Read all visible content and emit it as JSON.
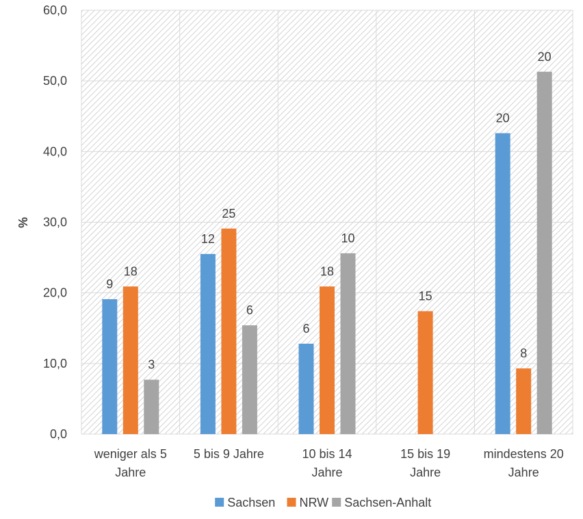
{
  "chart_data": {
    "type": "bar",
    "title": "",
    "xlabel": "",
    "ylabel": "%",
    "ylim": [
      0,
      60
    ],
    "yticks": [
      0,
      10,
      20,
      30,
      40,
      50,
      60
    ],
    "ytick_labels": [
      "0,0",
      "10,0",
      "20,0",
      "30,0",
      "40,0",
      "50,0",
      "60,0"
    ],
    "categories": [
      [
        "weniger als 5",
        "Jahre"
      ],
      [
        "5 bis 9 Jahre"
      ],
      [
        "10 bis 14",
        "Jahre"
      ],
      [
        "15 bis 19",
        "Jahre"
      ],
      [
        "mindestens 20",
        "Jahre"
      ]
    ],
    "series": [
      {
        "name": "Sachsen",
        "color": "#5B9BD5",
        "values": [
          19.1,
          25.5,
          12.8,
          null,
          42.6
        ],
        "labels": [
          "9",
          "12",
          "6",
          null,
          "20"
        ]
      },
      {
        "name": "NRW",
        "color": "#ED7D31",
        "values": [
          20.9,
          29.1,
          20.9,
          17.4,
          9.3
        ],
        "labels": [
          "18",
          "25",
          "18",
          "15",
          "8"
        ]
      },
      {
        "name": "Sachsen-Anhalt",
        "color": "#A5A5A5",
        "values": [
          7.7,
          15.4,
          25.6,
          null,
          51.3
        ],
        "labels": [
          "3",
          "6",
          "10",
          null,
          "20"
        ]
      }
    ],
    "grid": true,
    "background": "hatched",
    "legend_position": "bottom"
  }
}
